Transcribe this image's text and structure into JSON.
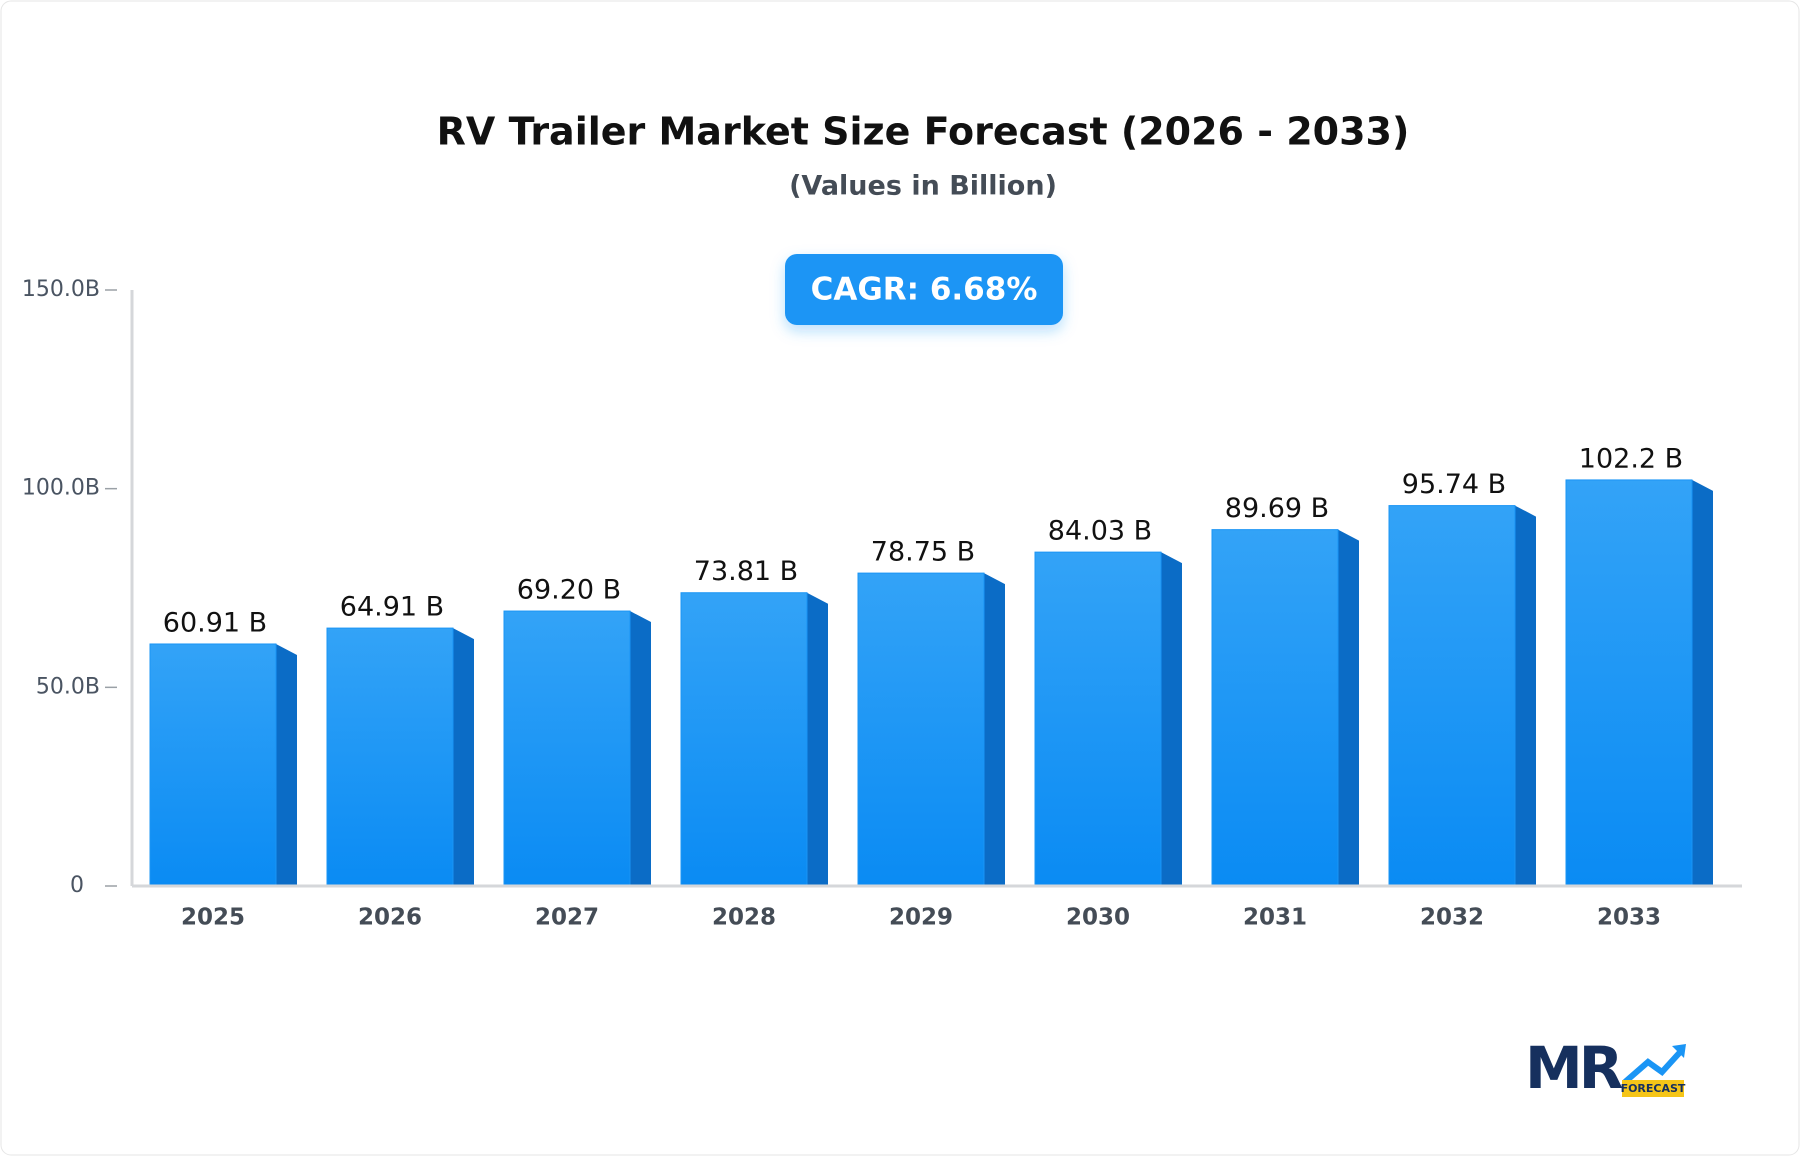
{
  "chart_data": {
    "type": "bar",
    "title": "RV Trailer Market Size Forecast (2026 - 2033)",
    "subtitle": "(Values in Billion)",
    "annotation": "CAGR: 6.68%",
    "categories": [
      "2025",
      "2026",
      "2027",
      "2028",
      "2029",
      "2030",
      "2031",
      "2032",
      "2033"
    ],
    "values": [
      60.91,
      64.91,
      69.2,
      73.81,
      78.75,
      84.03,
      89.69,
      95.74,
      102.2
    ],
    "value_labels": [
      "60.91 B",
      "64.91 B",
      "69.20 B",
      "73.81 B",
      "78.75 B",
      "84.03 B",
      "89.69 B",
      "95.74 B",
      "102.2 B"
    ],
    "color": "#1a95f5",
    "ylim": [
      0,
      150
    ],
    "yticks": [
      0,
      {
        "value": 50,
        "label": "50.0B"
      },
      {
        "value": 100,
        "label": "100.0B"
      },
      {
        "value": 150,
        "label": "150.0B"
      }
    ],
    "grid": false
  },
  "logo": {
    "text": "MR",
    "sub": "FORECAST"
  }
}
